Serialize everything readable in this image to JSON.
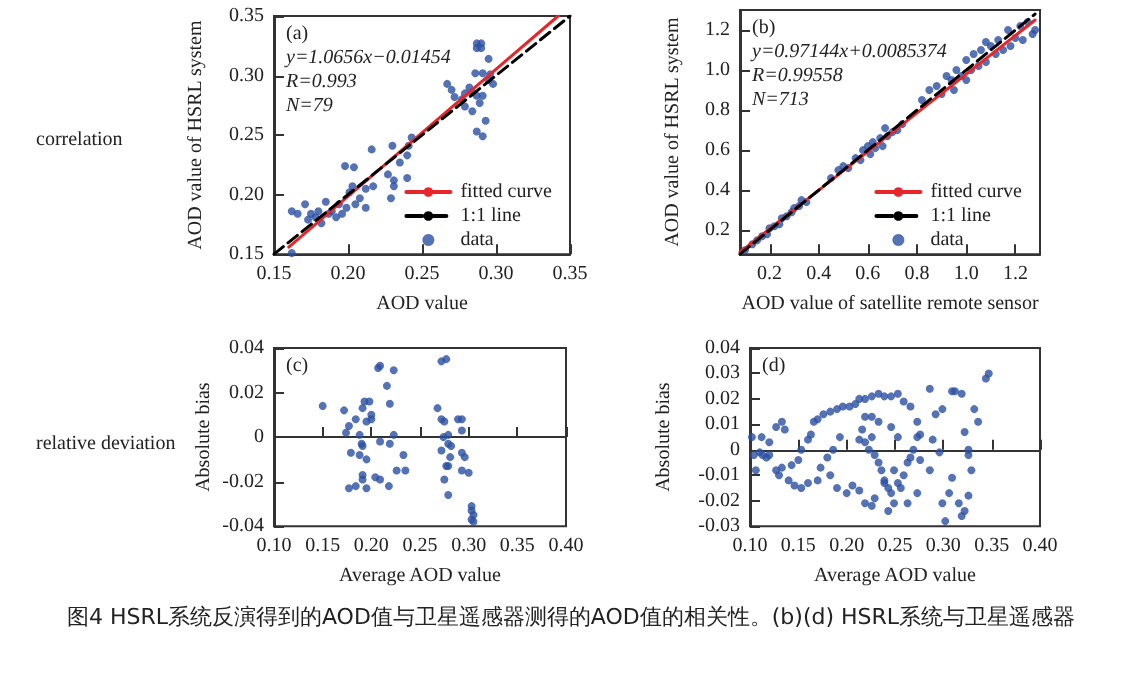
{
  "chart_data": [
    {
      "type": "scatter",
      "title": "correlation",
      "xlabel": "AOD value",
      "ylabel": "AOD value of HSRL system",
      "annotations": [
        "(a)",
        "y=1.0656x−0.01454",
        "R=0.993",
        "N=79"
      ],
      "xlim": [
        0.15,
        0.35
      ],
      "ylim": [
        0.15,
        0.35
      ],
      "xticks": [
        0.15,
        {
          "value": 0.2,
          "label": "0.20"
        },
        0.25,
        {
          "value": 0.3,
          "label": "0.30"
        },
        0.35
      ],
      "yticks": [
        0.15,
        {
          "value": 0.2,
          "label": "0.20"
        },
        0.25,
        {
          "value": 0.3,
          "label": "0.30"
        },
        0.35
      ],
      "legend": "bottom right",
      "series": [
        {
          "name": "fitted curve",
          "type": "line",
          "color": "#e8262a",
          "line_style": "solid",
          "marker": "none",
          "x": [
            0.16,
            0.342
          ],
          "values": [
            0.156,
            0.35
          ]
        },
        {
          "name": "1:1 line",
          "type": "line",
          "color": "#000000",
          "line_style": "dashed",
          "marker": "none",
          "x": [
            0.15,
            0.35
          ],
          "values": [
            0.15,
            0.35
          ]
        },
        {
          "name": "data",
          "type": "scatter",
          "color": "#2b4fa3",
          "marker": "circle",
          "x": [
            0.287,
            0.287,
            0.29,
            0.29,
            0.295,
            0.286,
            0.291,
            0.295,
            0.282,
            0.279,
            0.284,
            0.287,
            0.289,
            0.291,
            0.277,
            0.279,
            0.293,
            0.287,
            0.291,
            0.284,
            0.296,
            0.298,
            0.267,
            0.27,
            0.272,
            0.162,
            0.166,
            0.171,
            0.173,
            0.175,
            0.178,
            0.18,
            0.182,
            0.185,
            0.187,
            0.189,
            0.192,
            0.194,
            0.196,
            0.199,
            0.201,
            0.203,
            0.205,
            0.208,
            0.212,
            0.216,
            0.204,
            0.217,
            0.227,
            0.231,
            0.231,
            0.235,
            0.24,
            0.24,
            0.243,
            0.241,
            0.229,
            0.23,
            0.198,
            0.212,
            0.162
          ],
          "values": [
            0.327,
            0.323,
            0.327,
            0.323,
            0.314,
            0.302,
            0.302,
            0.296,
            0.29,
            0.285,
            0.286,
            0.283,
            0.277,
            0.283,
            0.28,
            0.274,
            0.262,
            0.253,
            0.249,
            0.27,
            0.301,
            0.293,
            0.293,
            0.288,
            0.282,
            0.186,
            0.184,
            0.192,
            0.179,
            0.184,
            0.181,
            0.186,
            0.176,
            0.194,
            0.184,
            0.186,
            0.181,
            0.192,
            0.184,
            0.189,
            0.202,
            0.207,
            0.192,
            0.197,
            0.189,
            0.238,
            0.223,
            0.207,
            0.217,
            0.212,
            0.207,
            0.227,
            0.233,
            0.214,
            0.248,
            0.241,
            0.197,
            0.241,
            0.224,
            0.205,
            0.151
          ]
        }
      ]
    },
    {
      "type": "scatter",
      "xlabel": "AOD value of satellite remote sensor",
      "ylabel": "AOD value of HSRL system",
      "annotations": [
        "(b)",
        "y=0.97144x+0.0085374",
        "R=0.99558",
        "N=713"
      ],
      "xlim": [
        0.08,
        1.3
      ],
      "ylim": [
        0.08,
        1.3
      ],
      "xticks": [
        0.2,
        0.4,
        0.6,
        0.8,
        {
          "value": 1,
          "label": "1.0"
        },
        1.2
      ],
      "yticks": [
        0.2,
        0.4,
        0.6,
        0.8,
        {
          "value": 1,
          "label": "1.0"
        },
        1.2
      ],
      "legend": "bottom right",
      "series": [
        {
          "name": "fitted curve",
          "type": "line",
          "color": "#e8262a",
          "line_style": "solid",
          "marker": "none",
          "x": [
            0.08,
            1.28
          ],
          "values": [
            0.09,
            1.25
          ]
        },
        {
          "name": "1:1 line",
          "type": "line",
          "color": "#000000",
          "line_style": "dashed",
          "marker": "none",
          "x": [
            0.08,
            1.28
          ],
          "values": [
            0.08,
            1.28
          ]
        },
        {
          "name": "data",
          "type": "scatter",
          "color": "#2b4fa3",
          "marker": "circle",
          "x": [
            0.1,
            0.13,
            0.15,
            0.17,
            0.19,
            0.2,
            0.22,
            0.24,
            0.25,
            0.27,
            0.29,
            0.3,
            0.32,
            0.33,
            0.35,
            0.45,
            0.48,
            0.5,
            0.52,
            0.55,
            0.57,
            0.58,
            0.6,
            0.61,
            0.63,
            0.65,
            0.66,
            0.68,
            0.7,
            0.72,
            0.74,
            0.62,
            0.67,
            0.82,
            0.85,
            0.88,
            0.9,
            0.92,
            0.94,
            0.96,
            0.98,
            1,
            1.02,
            1.03,
            1.05,
            1.06,
            1.08,
            1.1,
            1.12,
            1.13,
            1.15,
            1.17,
            1.18,
            1.2,
            1.22,
            1.23,
            1.25,
            1.27,
            1.28,
            1,
            0.95,
            1.08
          ],
          "values": [
            0.1,
            0.13,
            0.15,
            0.17,
            0.18,
            0.21,
            0.22,
            0.23,
            0.26,
            0.27,
            0.29,
            0.31,
            0.32,
            0.35,
            0.34,
            0.46,
            0.5,
            0.52,
            0.51,
            0.56,
            0.55,
            0.6,
            0.62,
            0.58,
            0.61,
            0.66,
            0.62,
            0.67,
            0.69,
            0.7,
            0.73,
            0.64,
            0.71,
            0.85,
            0.9,
            0.92,
            0.88,
            0.97,
            0.95,
            1,
            0.97,
            1.05,
            1,
            1.08,
            1.02,
            1.1,
            1.04,
            1.12,
            1.08,
            1.15,
            1.1,
            1.2,
            1.12,
            1.16,
            1.22,
            1.15,
            1.24,
            1.18,
            1.2,
            0.95,
            0.9,
            1.14
          ]
        }
      ]
    },
    {
      "type": "scatter",
      "title": "relative deviation",
      "xlabel": "Average AOD value",
      "ylabel": "Absolute bias",
      "annotations": [
        "(c)"
      ],
      "xlim": [
        0.1,
        0.4
      ],
      "ylim": [
        -0.04,
        0.04
      ],
      "xticks": [
        {
          "value": 0.1,
          "label": "0.10"
        },
        0.15,
        {
          "value": 0.2,
          "label": "0.20"
        },
        0.25,
        {
          "value": 0.3,
          "label": "0.30"
        },
        0.35,
        {
          "value": 0.4,
          "label": "0.40"
        }
      ],
      "yticks": [
        -0.04,
        -0.02,
        0,
        0.02,
        0.04
      ],
      "series": [
        {
          "type": "scatter",
          "color": "#2b4fa3",
          "marker": "circle",
          "x": [
            0.15,
            0.172,
            0.19,
            0.209,
            0.207,
            0.223,
            0.216,
            0.193,
            0.198,
            0.191,
            0.2,
            0.2,
            0.184,
            0.195,
            0.188,
            0.191,
            0.195,
            0.188,
            0.191,
            0.177,
            0.184,
            0.191,
            0.195,
            0.209,
            0.209,
            0.219,
            0.223,
            0.219,
            0.226,
            0.235,
            0.233,
            0.218,
            0.179,
            0.174,
            0.177,
            0.272,
            0.277,
            0.268,
            0.272,
            0.275,
            0.279,
            0.274,
            0.279,
            0.282,
            0.272,
            0.281,
            0.277,
            0.279,
            0.275,
            0.293,
            0.293,
            0.289,
            0.293,
            0.296,
            0.293,
            0.3,
            0.279,
            0.303,
            0.303,
            0.305,
            0.303,
            0.305,
            0.204
          ],
          "values": [
            0.014,
            0.012,
            -0.003,
            0.032,
            0.031,
            0.03,
            0.023,
            0.016,
            0.016,
            0.013,
            0.01,
            0.008,
            0.008,
            0.007,
            0.001,
            -0.004,
            -0.01,
            -0.008,
            -0.017,
            -0.023,
            -0.022,
            -0.019,
            -0.023,
            -0.019,
            -0.002,
            -0.003,
            0.001,
            0.015,
            -0.015,
            -0.015,
            -0.008,
            -0.022,
            -0.007,
            0.002,
            0.005,
            0.034,
            0.035,
            0.013,
            0.008,
            0.007,
            0.001,
            0,
            -0.003,
            -0.004,
            -0.006,
            -0.009,
            -0.013,
            -0.013,
            -0.019,
            0.008,
            0.003,
            0.008,
            -0.007,
            -0.009,
            -0.015,
            -0.016,
            -0.026,
            -0.031,
            -0.033,
            -0.035,
            -0.037,
            -0.038,
            -0.018
          ]
        }
      ]
    },
    {
      "type": "scatter",
      "xlabel": "Average AOD value",
      "ylabel": "Absolute bias",
      "annotations": [
        "(d)"
      ],
      "xlim": [
        0.1,
        0.4
      ],
      "ylim": [
        -0.03,
        0.04
      ],
      "xticks": [
        {
          "value": 0.1,
          "label": "0.10"
        },
        0.15,
        {
          "value": 0.2,
          "label": "0.20"
        },
        0.25,
        {
          "value": 0.3,
          "label": "0.30"
        },
        0.35,
        {
          "value": 0.4,
          "label": "0.40"
        }
      ],
      "yticks": [
        -0.03,
        -0.02,
        -0.01,
        0,
        0.01,
        0.02,
        0.03,
        0.04
      ],
      "series": [
        {
          "type": "scatter",
          "color": "#2b4fa3",
          "marker": "circle",
          "x": [
            0.102,
            0.104,
            0.106,
            0.11,
            0.113,
            0.117,
            0.12,
            0.112,
            0.12,
            0.127,
            0.133,
            0.136,
            0.127,
            0.13,
            0.133,
            0.14,
            0.146,
            0.153,
            0.16,
            0.143,
            0.15,
            0.153,
            0.16,
            0.163,
            0.166,
            0.17,
            0.176,
            0.183,
            0.19,
            0.196,
            0.203,
            0.209,
            0.213,
            0.219,
            0.226,
            0.233,
            0.239,
            0.246,
            0.253,
            0.259,
            0.266,
            0.273,
            0.276,
            0.219,
            0.216,
            0.213,
            0.219,
            0.223,
            0.226,
            0.229,
            0.233,
            0.236,
            0.239,
            0.243,
            0.246,
            0.249,
            0.243,
            0.239,
            0.249,
            0.253,
            0.256,
            0.259,
            0.263,
            0.266,
            0.269,
            0.273,
            0.253,
            0.246,
            0.233,
            0.226,
            0.193,
            0.186,
            0.18,
            0.173,
            0.17,
            0.183,
            0.19,
            0.2,
            0.206,
            0.213,
            0.219,
            0.226,
            0.229,
            0.263,
            0.273,
            0.276,
            0.286,
            0.286,
            0.289,
            0.292,
            0.299,
            0.296,
            0.299,
            0.302,
            0.306,
            0.309,
            0.312,
            0.319,
            0.322,
            0.326,
            0.326,
            0.329,
            0.332,
            0.336,
            0.316,
            0.319,
            0.322,
            0.309,
            0.326,
            0.344,
            0.347
          ],
          "values": [
            0.005,
            -0.002,
            -0.008,
            -0.001,
            -0.002,
            -0.003,
            -0.002,
            0.005,
            0.003,
            0.009,
            0.011,
            0.008,
            -0.008,
            -0.01,
            -0.007,
            -0.012,
            -0.014,
            -0.015,
            -0.013,
            -0.006,
            -0.004,
            0,
            0.004,
            0.006,
            0.011,
            0.012,
            0.014,
            0.015,
            0.016,
            0.017,
            0.017,
            0.018,
            0.02,
            0.02,
            0.021,
            0.022,
            0.021,
            0.021,
            0.022,
            0.019,
            0.017,
            0.011,
            0.006,
            0.013,
            0.008,
            0.004,
            0.003,
            0,
            0.005,
            -0.002,
            -0.005,
            -0.008,
            -0.013,
            -0.015,
            -0.017,
            -0.021,
            -0.024,
            -0.012,
            -0.008,
            -0.013,
            -0.015,
            -0.01,
            -0.005,
            -0.003,
            0,
            0.005,
            0.005,
            0.009,
            0.011,
            0.013,
            0.005,
            0,
            -0.003,
            -0.007,
            -0.012,
            -0.01,
            -0.015,
            -0.017,
            -0.014,
            -0.016,
            -0.021,
            -0.022,
            -0.019,
            -0.021,
            -0.017,
            -0.004,
            -0.008,
            0.024,
            0.004,
            0.014,
            0.016,
            -0.001,
            -0.021,
            -0.028,
            -0.017,
            0.023,
            0.023,
            0.022,
            0.007,
            0,
            -0.002,
            -0.008,
            0.016,
            0.011,
            -0.021,
            -0.026,
            -0.024,
            -0.011,
            -0.018,
            0.028,
            0.03
          ]
        }
      ]
    },
    {
      "type": "other",
      "title": "图4 HSRL系统反演得到的AOD值与卫星遥感器测得的AOD值的相关性。(b)(d) HSRL系统与卫星遥感器"
    }
  ]
}
